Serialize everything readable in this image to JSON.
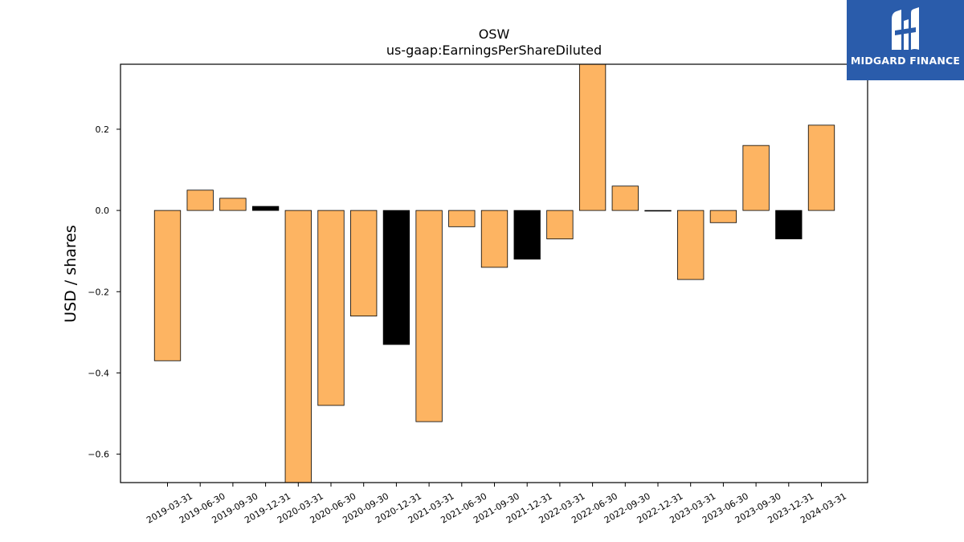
{
  "chart_data": {
    "type": "bar",
    "title": "OSW",
    "subtitle": "us-gaap:EarningsPerShareDiluted",
    "xlabel": "",
    "ylabel": "USD / shares",
    "ylim": [
      -0.67,
      0.36
    ],
    "yticks": [
      -0.6,
      -0.4,
      -0.2,
      0.0,
      0.2
    ],
    "ytick_labels": [
      "−0.6",
      "−0.4",
      "−0.2",
      "0.0",
      "0.2"
    ],
    "grid": false,
    "categories": [
      "2019-03-31",
      "2019-06-30",
      "2019-09-30",
      "2019-12-31",
      "2020-03-31",
      "2020-06-30",
      "2020-09-30",
      "2020-12-31",
      "2021-03-31",
      "2021-06-30",
      "2021-09-30",
      "2021-12-31",
      "2022-03-31",
      "2022-06-30",
      "2022-09-30",
      "2022-12-31",
      "2023-03-31",
      "2023-06-30",
      "2023-09-30",
      "2023-12-31",
      "2024-03-31"
    ],
    "values": [
      -0.37,
      0.05,
      0.03,
      0.01,
      -0.67,
      -0.48,
      -0.26,
      -0.33,
      -0.52,
      -0.04,
      -0.14,
      -0.12,
      -0.07,
      0.36,
      0.06,
      0.0,
      -0.17,
      -0.03,
      0.16,
      -0.07,
      0.21
    ],
    "bar_colors": [
      "#fdb462",
      "#fdb462",
      "#fdb462",
      "#000000",
      "#fdb462",
      "#fdb462",
      "#fdb462",
      "#000000",
      "#fdb462",
      "#fdb462",
      "#fdb462",
      "#000000",
      "#fdb462",
      "#fdb462",
      "#fdb462",
      "#000000",
      "#fdb462",
      "#fdb462",
      "#fdb462",
      "#000000",
      "#fdb462"
    ]
  },
  "logo": {
    "text": "MIDGARD FINANCE",
    "background": "#2a5cab",
    "icon": "midgard-logo-icon"
  }
}
